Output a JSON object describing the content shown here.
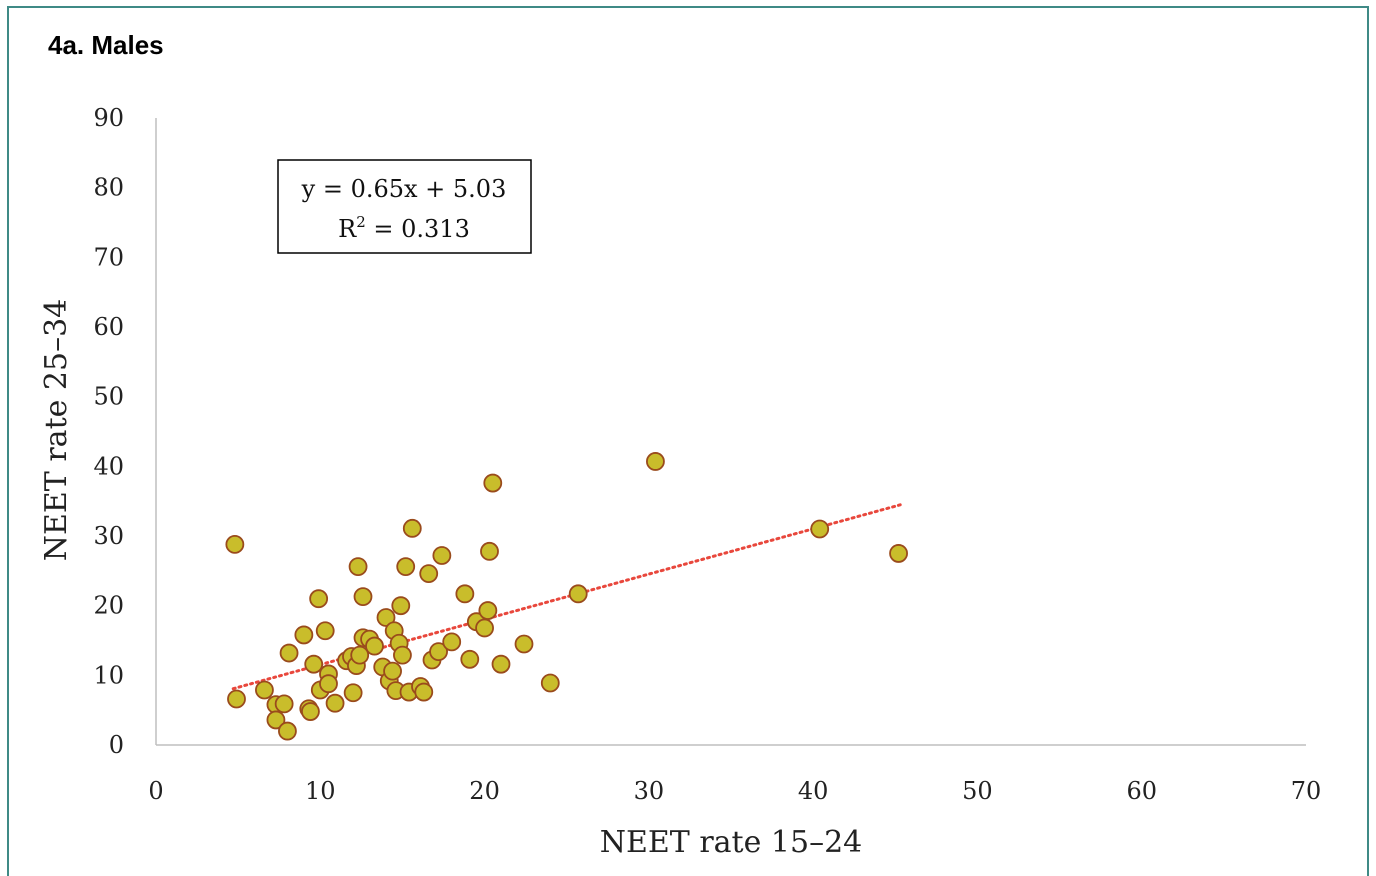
{
  "panel": {
    "title": "4a. Males"
  },
  "colors": {
    "frame": "#3f8a86",
    "point_fill": "#c9bd2b",
    "point_stroke": "#9a4b1c",
    "trend": "#e8473c",
    "axis": "#bfbfbf"
  },
  "chart_data": {
    "type": "scatter",
    "xlabel": "NEET rate 15–24",
    "ylabel": "NEET rate 25–34",
    "xlim": [
      0,
      70
    ],
    "ylim": [
      0,
      90
    ],
    "xticks": [
      0,
      10,
      20,
      30,
      40,
      50,
      60,
      70
    ],
    "yticks": [
      0,
      10,
      20,
      30,
      40,
      50,
      60,
      70,
      80,
      90
    ],
    "grid": false,
    "annotation": {
      "equation": "y = 0.65x + 5.03",
      "r2_text": "R",
      "r2_sup": "2",
      "r2_value": " = 0.313"
    },
    "trendline": {
      "slope": 0.65,
      "intercept": 5.03,
      "x_range": [
        4.7,
        45.3
      ],
      "style": "dotted"
    },
    "points": [
      [
        4.8,
        28.8
      ],
      [
        4.9,
        6.6
      ],
      [
        6.6,
        7.9
      ],
      [
        7.3,
        5.8
      ],
      [
        7.3,
        3.6
      ],
      [
        7.8,
        5.9
      ],
      [
        8.0,
        2.0
      ],
      [
        8.1,
        13.2
      ],
      [
        9.0,
        15.8
      ],
      [
        9.3,
        5.2
      ],
      [
        9.4,
        4.8
      ],
      [
        9.6,
        11.6
      ],
      [
        9.9,
        21.0
      ],
      [
        10.0,
        7.9
      ],
      [
        10.3,
        16.4
      ],
      [
        10.5,
        10.2
      ],
      [
        10.5,
        8.8
      ],
      [
        10.9,
        6.0
      ],
      [
        11.6,
        12.1
      ],
      [
        11.9,
        12.7
      ],
      [
        12.0,
        7.5
      ],
      [
        12.2,
        11.4
      ],
      [
        12.3,
        25.6
      ],
      [
        12.4,
        12.9
      ],
      [
        12.6,
        15.4
      ],
      [
        12.6,
        21.3
      ],
      [
        13.0,
        15.2
      ],
      [
        13.3,
        14.2
      ],
      [
        13.8,
        11.2
      ],
      [
        14.0,
        18.3
      ],
      [
        14.2,
        9.2
      ],
      [
        14.4,
        10.6
      ],
      [
        14.5,
        16.4
      ],
      [
        14.6,
        7.8
      ],
      [
        14.8,
        14.6
      ],
      [
        14.9,
        20.0
      ],
      [
        15.0,
        12.9
      ],
      [
        15.2,
        25.6
      ],
      [
        15.4,
        7.6
      ],
      [
        15.6,
        31.1
      ],
      [
        16.1,
        8.4
      ],
      [
        16.3,
        7.6
      ],
      [
        16.6,
        24.6
      ],
      [
        16.8,
        12.2
      ],
      [
        17.2,
        13.4
      ],
      [
        17.4,
        27.2
      ],
      [
        18.0,
        14.8
      ],
      [
        18.8,
        21.7
      ],
      [
        19.1,
        12.3
      ],
      [
        19.5,
        17.7
      ],
      [
        20.0,
        16.8
      ],
      [
        20.2,
        19.3
      ],
      [
        20.3,
        27.8
      ],
      [
        20.5,
        37.6
      ],
      [
        21.0,
        11.6
      ],
      [
        22.4,
        14.5
      ],
      [
        24.0,
        8.9
      ],
      [
        25.7,
        21.7
      ],
      [
        30.4,
        40.7
      ],
      [
        40.4,
        31.0
      ],
      [
        45.2,
        27.5
      ]
    ]
  }
}
